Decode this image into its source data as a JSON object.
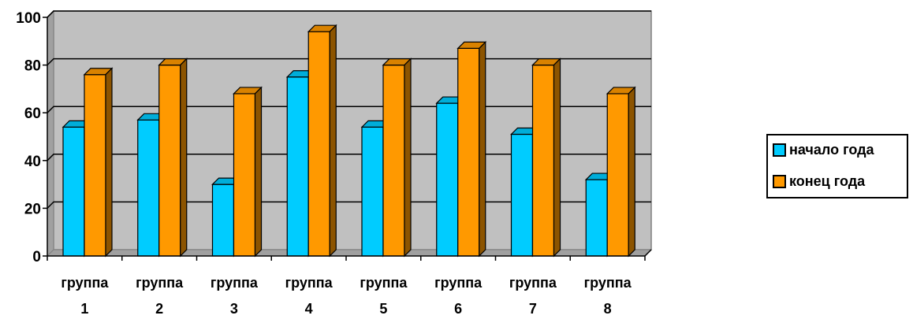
{
  "chart_data": {
    "type": "bar",
    "categories": [
      [
        "группа",
        "1"
      ],
      [
        "группа",
        "2"
      ],
      [
        "группа",
        "3"
      ],
      [
        "группа",
        "4"
      ],
      [
        "группа",
        "5"
      ],
      [
        "группа",
        "6"
      ],
      [
        "группа",
        "7"
      ],
      [
        "группа",
        "8"
      ]
    ],
    "series": [
      {
        "name": "начало года",
        "values": [
          54,
          57,
          30,
          75,
          54,
          64,
          51,
          32
        ],
        "color": "#00ccff"
      },
      {
        "name": "конец года",
        "values": [
          76,
          80,
          68,
          94,
          80,
          87,
          80,
          68
        ],
        "color": "#ff9900"
      }
    ],
    "yticks": [
      "0",
      "20",
      "40",
      "60",
      "80",
      "100"
    ],
    "ylim": [
      0,
      100
    ],
    "plot_background": "#c0c0c0",
    "grid": true,
    "style": "3d-column",
    "legend_position": "right"
  }
}
